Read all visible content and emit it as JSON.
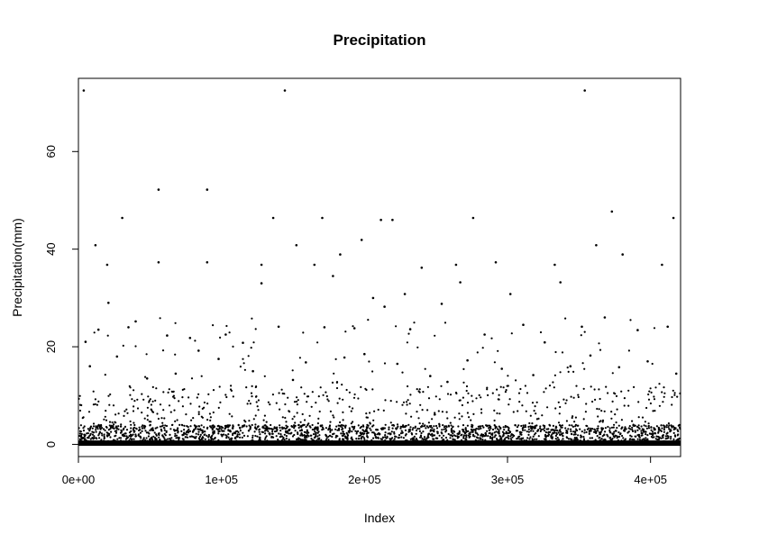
{
  "chart_data": {
    "type": "scatter",
    "title": "Precipitation",
    "xlabel": "Index",
    "ylabel": "Precipitation(mm)",
    "xlim": [
      0,
      421000
    ],
    "ylim": [
      -2.5,
      75
    ],
    "x_ticks": [
      0,
      100000,
      200000,
      300000,
      400000
    ],
    "x_tick_labels": [
      "0e+00",
      "1e+05",
      "2e+05",
      "3e+05",
      "4e+05"
    ],
    "y_ticks": [
      0,
      20,
      40,
      60
    ],
    "y_tick_labels": [
      "0",
      "20",
      "40",
      "60"
    ],
    "grid": false,
    "legend": "none",
    "marker_color": "#000000",
    "series": [
      {
        "x": [
          3700,
          11900,
          20100,
          30600,
          56000,
          90000,
          128000,
          136200,
          144300,
          152400,
          170500,
          183000,
          198000,
          211500,
          219600,
          228200,
          264000,
          276000,
          291800,
          333000,
          354000,
          362000,
          373000,
          380500,
          416000,
          5000,
          21000,
          40000,
          56000,
          90000,
          128000,
          165000,
          178000,
          206000,
          240000,
          267000,
          302000,
          337000,
          368000,
          408000,
          14000,
          35000,
          62000,
          78000,
          103000,
          115000,
          140000,
          172000,
          193000,
          214000,
          232000,
          254000,
          284000,
          311000,
          326000,
          352000,
          391000,
          412000,
          8000,
          27000,
          48000,
          68000,
          84000,
          98000,
          122000,
          150000,
          159000,
          186000,
          200000,
          223000,
          246000,
          258000,
          272000,
          296000,
          318000,
          344000,
          358000,
          378000,
          398000,
          418000
        ],
        "y": [
          72.5,
          40.8,
          36.8,
          46.4,
          52.2,
          52.2,
          36.8,
          46.4,
          72.5,
          40.8,
          46.4,
          38.9,
          41.9,
          46.0,
          46.0,
          30.8,
          36.8,
          46.4,
          37.3,
          36.8,
          72.5,
          40.8,
          47.7,
          38.9,
          46.4,
          21.0,
          29.0,
          25.2,
          37.3,
          37.3,
          33.0,
          36.8,
          34.5,
          30.0,
          36.2,
          33.2,
          30.8,
          33.2,
          26.0,
          36.8,
          23.5,
          24.0,
          22.3,
          21.8,
          22.5,
          20.8,
          24.1,
          24.0,
          23.8,
          28.2,
          23.6,
          28.8,
          22.5,
          24.5,
          20.9,
          24.1,
          23.4,
          24.1,
          16.0,
          18.0,
          13.5,
          14.5,
          19.2,
          17.5,
          15.0,
          13.2,
          16.8,
          17.8,
          18.5,
          16.5,
          14.0,
          12.8,
          17.2,
          15.5,
          14.2,
          16.0,
          18.2,
          15.8,
          17.0,
          14.5
        ]
      }
    ]
  }
}
